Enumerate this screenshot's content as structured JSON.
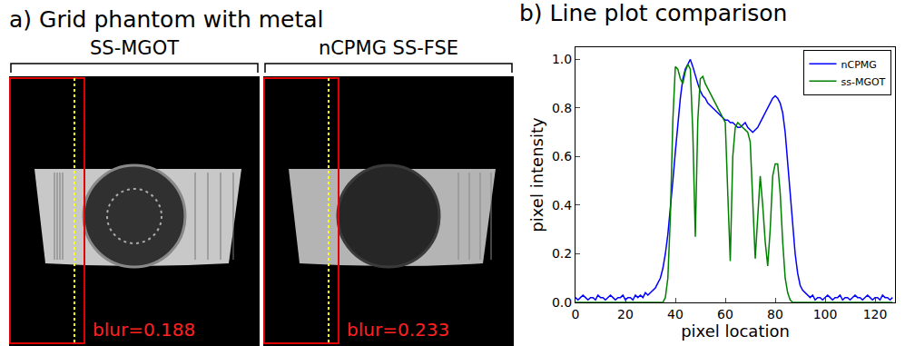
{
  "panel_a": {
    "title": "a) Grid phantom with metal",
    "images": [
      {
        "label": "SS-MGOT",
        "blur_label": "blur=0.188"
      },
      {
        "label": "nCPMG SS-FSE",
        "blur_label": "blur=0.233"
      }
    ]
  },
  "chart_data": {
    "type": "line",
    "title": "b) Line plot comparison",
    "x_label": "pixel location",
    "y_label": "pixel intensity",
    "x": [
      0,
      1,
      2,
      3,
      4,
      5,
      6,
      7,
      8,
      9,
      10,
      11,
      12,
      13,
      14,
      15,
      16,
      17,
      18,
      19,
      20,
      21,
      22,
      23,
      24,
      25,
      26,
      27,
      28,
      29,
      30,
      31,
      32,
      33,
      34,
      35,
      36,
      37,
      38,
      39,
      40,
      41,
      42,
      43,
      44,
      45,
      46,
      47,
      48,
      49,
      50,
      51,
      52,
      53,
      54,
      55,
      56,
      57,
      58,
      59,
      60,
      61,
      62,
      63,
      64,
      65,
      66,
      67,
      68,
      69,
      70,
      71,
      72,
      73,
      74,
      75,
      76,
      77,
      78,
      79,
      80,
      81,
      82,
      83,
      84,
      85,
      86,
      87,
      88,
      89,
      90,
      91,
      92,
      93,
      94,
      95,
      96,
      97,
      98,
      99,
      100,
      101,
      102,
      103,
      104,
      105,
      106,
      107,
      108,
      109,
      110,
      111,
      112,
      113,
      114,
      115,
      116,
      117,
      118,
      119,
      120,
      121,
      122,
      123,
      124,
      125,
      126,
      127
    ],
    "series": [
      {
        "name": "nCPMG",
        "color": "#0000ff",
        "values": [
          0.02,
          0.01,
          0.02,
          0.03,
          0.02,
          0.01,
          0.02,
          0.02,
          0.01,
          0.03,
          0.02,
          0.02,
          0.01,
          0.02,
          0.03,
          0.02,
          0.01,
          0.02,
          0.02,
          0.03,
          0.01,
          0.02,
          0.02,
          0.01,
          0.03,
          0.02,
          0.03,
          0.02,
          0.04,
          0.03,
          0.04,
          0.05,
          0.06,
          0.08,
          0.1,
          0.14,
          0.2,
          0.28,
          0.38,
          0.5,
          0.62,
          0.74,
          0.84,
          0.92,
          0.96,
          0.98,
          1.0,
          0.97,
          0.93,
          0.9,
          0.87,
          0.85,
          0.84,
          0.82,
          0.81,
          0.8,
          0.79,
          0.78,
          0.77,
          0.76,
          0.75,
          0.75,
          0.74,
          0.74,
          0.73,
          0.72,
          0.72,
          0.73,
          0.74,
          0.72,
          0.71,
          0.7,
          0.71,
          0.72,
          0.74,
          0.76,
          0.78,
          0.8,
          0.82,
          0.84,
          0.85,
          0.84,
          0.82,
          0.78,
          0.7,
          0.58,
          0.45,
          0.32,
          0.2,
          0.12,
          0.07,
          0.05,
          0.04,
          0.03,
          0.02,
          0.03,
          0.01,
          0.02,
          0.02,
          0.01,
          0.02,
          0.03,
          0.02,
          0.01,
          0.02,
          0.02,
          0.03,
          0.01,
          0.02,
          0.02,
          0.01,
          0.02,
          0.03,
          0.02,
          0.02,
          0.01,
          0.02,
          0.03,
          0.02,
          0.01,
          0.02,
          0.02,
          0.01,
          0.03,
          0.02,
          0.02,
          0.01,
          0.02
        ]
      },
      {
        "name": "ss-MGOT",
        "color": "#008000",
        "values": [
          0,
          0,
          0,
          0,
          0,
          0,
          0,
          0,
          0,
          0,
          0,
          0,
          0,
          0,
          0,
          0,
          0,
          0,
          0,
          0,
          0,
          0,
          0,
          0,
          0,
          0,
          0,
          0,
          0,
          0,
          0,
          0,
          0,
          0,
          0,
          0,
          0.02,
          0.1,
          0.35,
          0.75,
          0.97,
          0.96,
          0.92,
          0.9,
          0.95,
          0.98,
          0.96,
          0.7,
          0.27,
          0.75,
          0.92,
          0.93,
          0.9,
          0.88,
          0.86,
          0.84,
          0.82,
          0.8,
          0.78,
          0.76,
          0.74,
          0.45,
          0.17,
          0.6,
          0.72,
          0.74,
          0.73,
          0.72,
          0.71,
          0.7,
          0.66,
          0.4,
          0.18,
          0.35,
          0.52,
          0.4,
          0.25,
          0.15,
          0.3,
          0.52,
          0.57,
          0.57,
          0.45,
          0.25,
          0.1,
          0.04,
          0.01,
          0,
          0,
          0,
          0,
          0,
          0,
          0,
          0,
          0,
          0,
          0,
          0,
          0,
          0,
          0,
          0,
          0,
          0,
          0,
          0,
          0,
          0,
          0,
          0,
          0,
          0,
          0,
          0,
          0,
          0,
          0,
          0,
          0,
          0,
          0,
          0,
          0,
          0,
          0,
          0,
          0
        ]
      }
    ],
    "xlim": [
      0,
      128
    ],
    "xticks": [
      0,
      20,
      40,
      60,
      80,
      100,
      120
    ],
    "ylim": [
      0,
      1.05
    ],
    "yticks": [
      {
        "value": 0,
        "label": "0.0"
      },
      {
        "value": 0.2,
        "label": "0.2"
      },
      {
        "value": 0.4,
        "label": "0.4"
      },
      {
        "value": 0.6,
        "label": "0.6"
      },
      {
        "value": 0.8,
        "label": "0.8"
      },
      {
        "value": 1.0,
        "label": "1.0"
      }
    ],
    "grid": false,
    "legend": "upper right"
  }
}
